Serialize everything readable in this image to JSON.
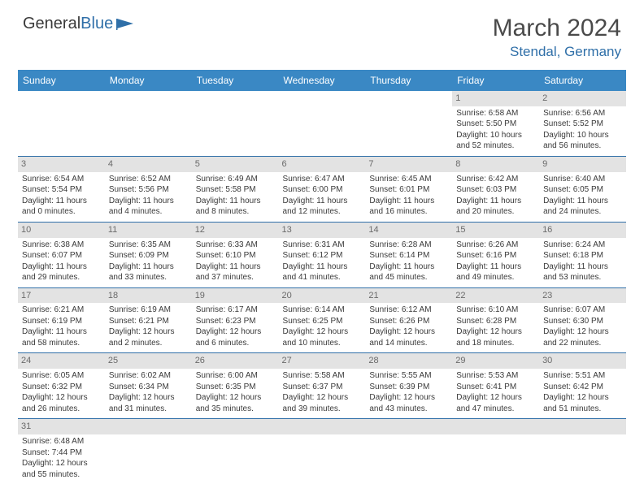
{
  "logo": {
    "part1": "General",
    "part2": "Blue"
  },
  "title": "March 2024",
  "location": "Stendal, Germany",
  "colors": {
    "headerBg": "#3a88c4",
    "headerText": "#ffffff",
    "accent": "#2f6fa8",
    "dayStrip": "#e3e3e3",
    "text": "#3a3a3a"
  },
  "daysOfWeek": [
    "Sunday",
    "Monday",
    "Tuesday",
    "Wednesday",
    "Thursday",
    "Friday",
    "Saturday"
  ],
  "weeks": [
    [
      null,
      null,
      null,
      null,
      null,
      {
        "n": "1",
        "sr": "6:58 AM",
        "ss": "5:50 PM",
        "dl": "10 hours and 52 minutes."
      },
      {
        "n": "2",
        "sr": "6:56 AM",
        "ss": "5:52 PM",
        "dl": "10 hours and 56 minutes."
      }
    ],
    [
      {
        "n": "3",
        "sr": "6:54 AM",
        "ss": "5:54 PM",
        "dl": "11 hours and 0 minutes."
      },
      {
        "n": "4",
        "sr": "6:52 AM",
        "ss": "5:56 PM",
        "dl": "11 hours and 4 minutes."
      },
      {
        "n": "5",
        "sr": "6:49 AM",
        "ss": "5:58 PM",
        "dl": "11 hours and 8 minutes."
      },
      {
        "n": "6",
        "sr": "6:47 AM",
        "ss": "6:00 PM",
        "dl": "11 hours and 12 minutes."
      },
      {
        "n": "7",
        "sr": "6:45 AM",
        "ss": "6:01 PM",
        "dl": "11 hours and 16 minutes."
      },
      {
        "n": "8",
        "sr": "6:42 AM",
        "ss": "6:03 PM",
        "dl": "11 hours and 20 minutes."
      },
      {
        "n": "9",
        "sr": "6:40 AM",
        "ss": "6:05 PM",
        "dl": "11 hours and 24 minutes."
      }
    ],
    [
      {
        "n": "10",
        "sr": "6:38 AM",
        "ss": "6:07 PM",
        "dl": "11 hours and 29 minutes."
      },
      {
        "n": "11",
        "sr": "6:35 AM",
        "ss": "6:09 PM",
        "dl": "11 hours and 33 minutes."
      },
      {
        "n": "12",
        "sr": "6:33 AM",
        "ss": "6:10 PM",
        "dl": "11 hours and 37 minutes."
      },
      {
        "n": "13",
        "sr": "6:31 AM",
        "ss": "6:12 PM",
        "dl": "11 hours and 41 minutes."
      },
      {
        "n": "14",
        "sr": "6:28 AM",
        "ss": "6:14 PM",
        "dl": "11 hours and 45 minutes."
      },
      {
        "n": "15",
        "sr": "6:26 AM",
        "ss": "6:16 PM",
        "dl": "11 hours and 49 minutes."
      },
      {
        "n": "16",
        "sr": "6:24 AM",
        "ss": "6:18 PM",
        "dl": "11 hours and 53 minutes."
      }
    ],
    [
      {
        "n": "17",
        "sr": "6:21 AM",
        "ss": "6:19 PM",
        "dl": "11 hours and 58 minutes."
      },
      {
        "n": "18",
        "sr": "6:19 AM",
        "ss": "6:21 PM",
        "dl": "12 hours and 2 minutes."
      },
      {
        "n": "19",
        "sr": "6:17 AM",
        "ss": "6:23 PM",
        "dl": "12 hours and 6 minutes."
      },
      {
        "n": "20",
        "sr": "6:14 AM",
        "ss": "6:25 PM",
        "dl": "12 hours and 10 minutes."
      },
      {
        "n": "21",
        "sr": "6:12 AM",
        "ss": "6:26 PM",
        "dl": "12 hours and 14 minutes."
      },
      {
        "n": "22",
        "sr": "6:10 AM",
        "ss": "6:28 PM",
        "dl": "12 hours and 18 minutes."
      },
      {
        "n": "23",
        "sr": "6:07 AM",
        "ss": "6:30 PM",
        "dl": "12 hours and 22 minutes."
      }
    ],
    [
      {
        "n": "24",
        "sr": "6:05 AM",
        "ss": "6:32 PM",
        "dl": "12 hours and 26 minutes."
      },
      {
        "n": "25",
        "sr": "6:02 AM",
        "ss": "6:34 PM",
        "dl": "12 hours and 31 minutes."
      },
      {
        "n": "26",
        "sr": "6:00 AM",
        "ss": "6:35 PM",
        "dl": "12 hours and 35 minutes."
      },
      {
        "n": "27",
        "sr": "5:58 AM",
        "ss": "6:37 PM",
        "dl": "12 hours and 39 minutes."
      },
      {
        "n": "28",
        "sr": "5:55 AM",
        "ss": "6:39 PM",
        "dl": "12 hours and 43 minutes."
      },
      {
        "n": "29",
        "sr": "5:53 AM",
        "ss": "6:41 PM",
        "dl": "12 hours and 47 minutes."
      },
      {
        "n": "30",
        "sr": "5:51 AM",
        "ss": "6:42 PM",
        "dl": "12 hours and 51 minutes."
      }
    ],
    [
      {
        "n": "31",
        "sr": "6:48 AM",
        "ss": "7:44 PM",
        "dl": "12 hours and 55 minutes."
      },
      null,
      null,
      null,
      null,
      null,
      null
    ]
  ],
  "labels": {
    "sunrise": "Sunrise: ",
    "sunset": "Sunset: ",
    "daylight": "Daylight: "
  }
}
